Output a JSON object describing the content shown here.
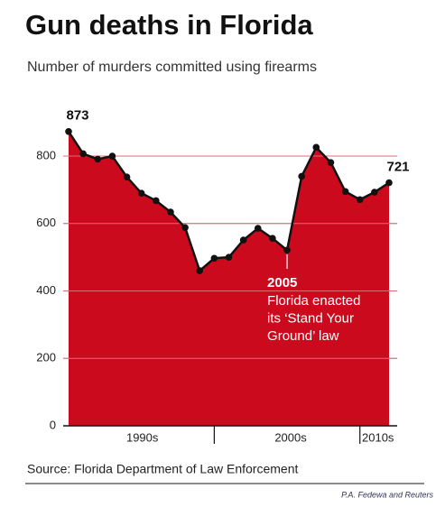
{
  "chart_data": {
    "type": "area",
    "title": "Gun deaths in Florida",
    "subtitle": "Number of murders committed using firearms",
    "x": [
      1990,
      1991,
      1992,
      1993,
      1994,
      1995,
      1996,
      1997,
      1998,
      1999,
      2000,
      2001,
      2002,
      2003,
      2004,
      2005,
      2006,
      2007,
      2008,
      2009,
      2010,
      2011,
      2012
    ],
    "values": [
      873,
      807,
      791,
      800,
      738,
      690,
      668,
      634,
      588,
      460,
      497,
      500,
      551,
      586,
      556,
      521,
      740,
      826,
      781,
      695,
      671,
      693,
      721
    ],
    "value_labels": {
      "0": "873",
      "22": "721"
    },
    "color": "#cc0a1e",
    "line_color": "#111111",
    "ylim": [
      0,
      950
    ],
    "yticks": [
      0,
      200,
      400,
      600,
      800
    ],
    "grid": true,
    "xticks": [
      2000,
      2010
    ],
    "xlabels": [
      "1990s",
      "2000s",
      "2010s"
    ],
    "annotation": {
      "x": 2005,
      "title": "2005",
      "lines": [
        "Florida enacted",
        "its ‘Stand Your",
        "Ground’ law"
      ]
    },
    "source": "Source: Florida Department of Law Enforcement",
    "credit": "P.A. Fedewa and Reuters"
  }
}
